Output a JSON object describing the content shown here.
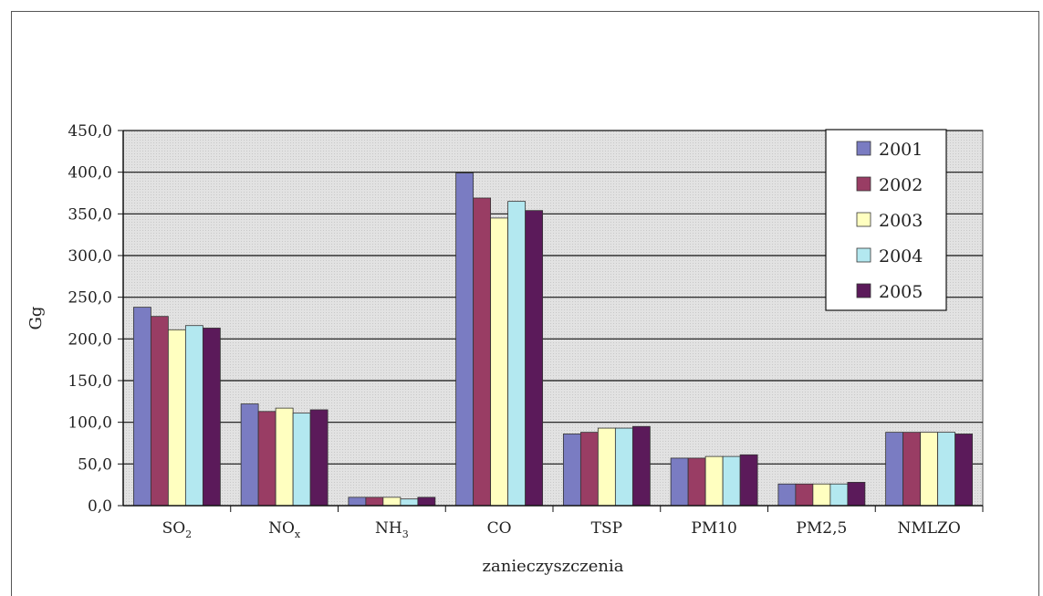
{
  "chart_data": {
    "type": "bar",
    "title": "",
    "xlabel": "zanieczyszczenia",
    "ylabel": "Gg",
    "ylim": [
      0,
      450
    ],
    "ytick_labels": [
      "0,0",
      "50,0",
      "100,0",
      "150,0",
      "200,0",
      "250,0",
      "300,0",
      "350,0",
      "400,0",
      "450,0"
    ],
    "categories": [
      {
        "main": "SO",
        "sub": "2"
      },
      {
        "main": "NO",
        "sub": "x"
      },
      {
        "main": "NH",
        "sub": "3"
      },
      {
        "main": "CO",
        "sub": ""
      },
      {
        "main": "TSP",
        "sub": ""
      },
      {
        "main": "PM10",
        "sub": ""
      },
      {
        "main": "PM2,5",
        "sub": ""
      },
      {
        "main": "NMLZO",
        "sub": ""
      }
    ],
    "series": [
      {
        "name": "2001",
        "color": "#7a7cc2",
        "values": [
          238,
          122,
          10,
          399,
          86,
          57,
          26,
          88
        ]
      },
      {
        "name": "2002",
        "color": "#993d64",
        "values": [
          227,
          113,
          10,
          369,
          88,
          57,
          26,
          88
        ]
      },
      {
        "name": "2003",
        "color": "#ffffc0",
        "values": [
          211,
          117,
          10,
          345,
          93,
          59,
          26,
          88
        ]
      },
      {
        "name": "2004",
        "color": "#b3e8f0",
        "values": [
          216,
          111,
          8,
          365,
          93,
          59,
          26,
          88
        ]
      },
      {
        "name": "2005",
        "color": "#5b1a5a",
        "values": [
          213,
          115,
          10,
          354,
          95,
          61,
          28,
          86
        ]
      }
    ],
    "grid": true,
    "legend_position": "top-right",
    "plot_background": "#e4e4e4"
  }
}
